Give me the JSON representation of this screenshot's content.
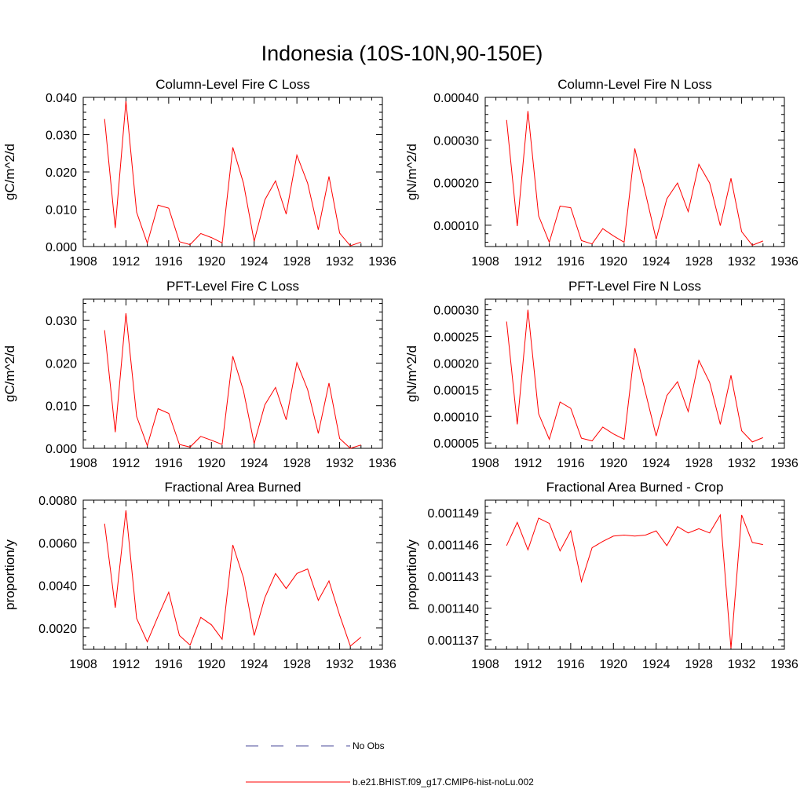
{
  "figure": {
    "title": "Indonesia (10S-10N,90-150E)"
  },
  "legend": {
    "items": [
      {
        "label": "No Obs",
        "color": "#4a4a9a",
        "dash": true
      },
      {
        "label": "b.e21.BHIST.f09_g17.CMIP6-hist-noLu.002",
        "color": "#ff0000",
        "dash": false
      }
    ]
  },
  "chart_data": [
    {
      "type": "line",
      "title": "Column-Level Fire C Loss",
      "ylabel": "gC/m^2/d",
      "xlim": [
        1908,
        1936
      ],
      "ylim": [
        0,
        0.04
      ],
      "xticks": [
        1908,
        1912,
        1916,
        1920,
        1924,
        1928,
        1932,
        1936
      ],
      "xtick_labels": [
        "1908",
        "1912",
        "1916",
        "1920",
        "1924",
        "1928",
        "1932",
        "1936"
      ],
      "yticks": [
        0,
        0.01,
        0.02,
        0.03,
        0.04
      ],
      "ytick_labels": [
        "0.000",
        "0.010",
        "0.020",
        "0.030",
        "0.040"
      ],
      "series": [
        {
          "color": "#ff0000",
          "x": [
            1910,
            1911,
            1912,
            1913,
            1914,
            1915,
            1916,
            1917,
            1918,
            1919,
            1920,
            1921,
            1922,
            1923,
            1924,
            1925,
            1926,
            1927,
            1928,
            1929,
            1930,
            1931,
            1932,
            1933,
            1934
          ],
          "values": [
            0.0342,
            0.005,
            0.039,
            0.0092,
            0.0009,
            0.0111,
            0.0103,
            0.0013,
            0.0005,
            0.0035,
            0.0024,
            0.001,
            0.0266,
            0.017,
            0.0014,
            0.0125,
            0.0176,
            0.0087,
            0.0245,
            0.017,
            0.0045,
            0.0188,
            0.0036,
            0.0002,
            0.0012
          ]
        }
      ]
    },
    {
      "type": "line",
      "title": "Column-Level Fire N Loss",
      "ylabel": "gN/m^2/d",
      "xlim": [
        1908,
        1936
      ],
      "ylim": [
        5e-05,
        0.0004
      ],
      "xticks": [
        1908,
        1912,
        1916,
        1920,
        1924,
        1928,
        1932,
        1936
      ],
      "xtick_labels": [
        "1908",
        "1912",
        "1916",
        "1920",
        "1924",
        "1928",
        "1932",
        "1936"
      ],
      "yticks": [
        0.0001,
        0.0002,
        0.0003,
        0.0004
      ],
      "ytick_labels": [
        "0.00010",
        "0.00020",
        "0.00030",
        "0.00040"
      ],
      "series": [
        {
          "color": "#ff0000",
          "x": [
            1910,
            1911,
            1912,
            1913,
            1914,
            1915,
            1916,
            1917,
            1918,
            1919,
            1920,
            1921,
            1922,
            1923,
            1924,
            1925,
            1926,
            1927,
            1928,
            1929,
            1930,
            1931,
            1932,
            1933,
            1934
          ],
          "values": [
            0.000347,
            9.8e-05,
            0.000368,
            0.000122,
            6e-05,
            0.000145,
            0.000141,
            6.4e-05,
            5.6e-05,
            9.2e-05,
            7.5e-05,
            6e-05,
            0.00028,
            0.000175,
            6.7e-05,
            0.000162,
            0.000199,
            0.000132,
            0.000243,
            0.000199,
            9.9e-05,
            0.00021,
            8.5e-05,
            5.3e-05,
            6.3e-05
          ]
        }
      ]
    },
    {
      "type": "line",
      "title": "PFT-Level Fire C Loss",
      "ylabel": "gC/m^2/d",
      "xlim": [
        1908,
        1936
      ],
      "ylim": [
        0,
        0.035
      ],
      "xticks": [
        1908,
        1912,
        1916,
        1920,
        1924,
        1928,
        1932,
        1936
      ],
      "xtick_labels": [
        "1908",
        "1912",
        "1916",
        "1920",
        "1924",
        "1928",
        "1932",
        "1936"
      ],
      "yticks": [
        0,
        0.01,
        0.02,
        0.03
      ],
      "ytick_labels": [
        "0.000",
        "0.010",
        "0.020",
        "0.030"
      ],
      "series": [
        {
          "color": "#ff0000",
          "x": [
            1910,
            1911,
            1912,
            1913,
            1914,
            1915,
            1916,
            1917,
            1918,
            1919,
            1920,
            1921,
            1922,
            1923,
            1924,
            1925,
            1926,
            1927,
            1928,
            1929,
            1930,
            1931,
            1932,
            1933,
            1934
          ],
          "values": [
            0.0277,
            0.0038,
            0.0317,
            0.0075,
            0.0006,
            0.0093,
            0.0082,
            0.0009,
            0.0003,
            0.0028,
            0.0019,
            0.0009,
            0.0216,
            0.0135,
            0.0011,
            0.0102,
            0.0143,
            0.0067,
            0.0201,
            0.0138,
            0.0035,
            0.0153,
            0.0023,
            0.0,
            0.0008
          ]
        }
      ]
    },
    {
      "type": "line",
      "title": "PFT-Level Fire N Loss",
      "ylabel": "gN/m^2/d",
      "xlim": [
        1908,
        1936
      ],
      "ylim": [
        4e-05,
        0.00032
      ],
      "xticks": [
        1908,
        1912,
        1916,
        1920,
        1924,
        1928,
        1932,
        1936
      ],
      "xtick_labels": [
        "1908",
        "1912",
        "1916",
        "1920",
        "1924",
        "1928",
        "1932",
        "1936"
      ],
      "yticks": [
        5e-05,
        0.0001,
        0.00015,
        0.0002,
        0.00025,
        0.0003
      ],
      "ytick_labels": [
        "0.00005",
        "0.00010",
        "0.00015",
        "0.00020",
        "0.00025",
        "0.00030"
      ],
      "series": [
        {
          "color": "#ff0000",
          "x": [
            1910,
            1911,
            1912,
            1913,
            1914,
            1915,
            1916,
            1917,
            1918,
            1919,
            1920,
            1921,
            1922,
            1923,
            1924,
            1925,
            1926,
            1927,
            1928,
            1929,
            1930,
            1931,
            1932,
            1933,
            1934
          ],
          "values": [
            0.000278,
            8.5e-05,
            0.0003,
            0.000105,
            5.7e-05,
            0.000127,
            0.000115,
            5.9e-05,
            5.4e-05,
            8e-05,
            6.7e-05,
            5.7e-05,
            0.000228,
            0.000145,
            6.3e-05,
            0.000139,
            0.000165,
            0.000109,
            0.000205,
            0.000164,
            8.5e-05,
            0.000177,
            7.3e-05,
            5.2e-05,
            6e-05
          ]
        }
      ]
    },
    {
      "type": "line",
      "title": "Fractional Area Burned",
      "ylabel": "proportion/y",
      "xlim": [
        1908,
        1936
      ],
      "ylim": [
        0.001,
        0.008
      ],
      "xticks": [
        1908,
        1912,
        1916,
        1920,
        1924,
        1928,
        1932,
        1936
      ],
      "xtick_labels": [
        "1908",
        "1912",
        "1916",
        "1920",
        "1924",
        "1928",
        "1932",
        "1936"
      ],
      "yticks": [
        0.002,
        0.004,
        0.006,
        0.008
      ],
      "ytick_labels": [
        "0.0020",
        "0.0040",
        "0.0060",
        "0.0080"
      ],
      "series": [
        {
          "color": "#ff0000",
          "x": [
            1910,
            1911,
            1912,
            1913,
            1914,
            1915,
            1916,
            1917,
            1918,
            1919,
            1920,
            1921,
            1922,
            1923,
            1924,
            1925,
            1926,
            1927,
            1928,
            1929,
            1930,
            1931,
            1932,
            1933,
            1934
          ],
          "values": [
            0.0069,
            0.00295,
            0.00752,
            0.00245,
            0.00135,
            0.00255,
            0.00368,
            0.00165,
            0.0012,
            0.0025,
            0.00215,
            0.00147,
            0.0059,
            0.00435,
            0.00165,
            0.00342,
            0.00456,
            0.00385,
            0.00456,
            0.00477,
            0.0033,
            0.00421,
            0.0026,
            0.00115,
            0.00157
          ]
        }
      ]
    },
    {
      "type": "line",
      "title": "Fractional Area Burned - Crop",
      "ylabel": "proportion/y",
      "xlim": [
        1908,
        1936
      ],
      "ylim": [
        0.0011361,
        0.0011502
      ],
      "xticks": [
        1908,
        1912,
        1916,
        1920,
        1924,
        1928,
        1932,
        1936
      ],
      "xtick_labels": [
        "1908",
        "1912",
        "1916",
        "1920",
        "1924",
        "1928",
        "1932",
        "1936"
      ],
      "yticks": [
        0.001137,
        0.00114,
        0.001143,
        0.001146,
        0.001149
      ],
      "ytick_labels": [
        "0.001137",
        "0.001140",
        "0.001143",
        "0.001146",
        "0.001149"
      ],
      "series": [
        {
          "color": "#ff0000",
          "x": [
            1910,
            1911,
            1912,
            1913,
            1914,
            1915,
            1916,
            1917,
            1918,
            1919,
            1920,
            1921,
            1922,
            1923,
            1924,
            1925,
            1926,
            1927,
            1928,
            1929,
            1930,
            1931,
            1932,
            1933,
            1934
          ],
          "values": [
            0.0011459,
            0.0011481,
            0.0011455,
            0.0011485,
            0.001148,
            0.0011454,
            0.0011473,
            0.0011425,
            0.0011457,
            0.0011463,
            0.0011468,
            0.0011469,
            0.0011468,
            0.0011469,
            0.0011473,
            0.0011459,
            0.0011477,
            0.0011471,
            0.0011475,
            0.0011471,
            0.0011488,
            0.0011362,
            0.0011488,
            0.0011462,
            0.001146
          ]
        }
      ]
    }
  ]
}
